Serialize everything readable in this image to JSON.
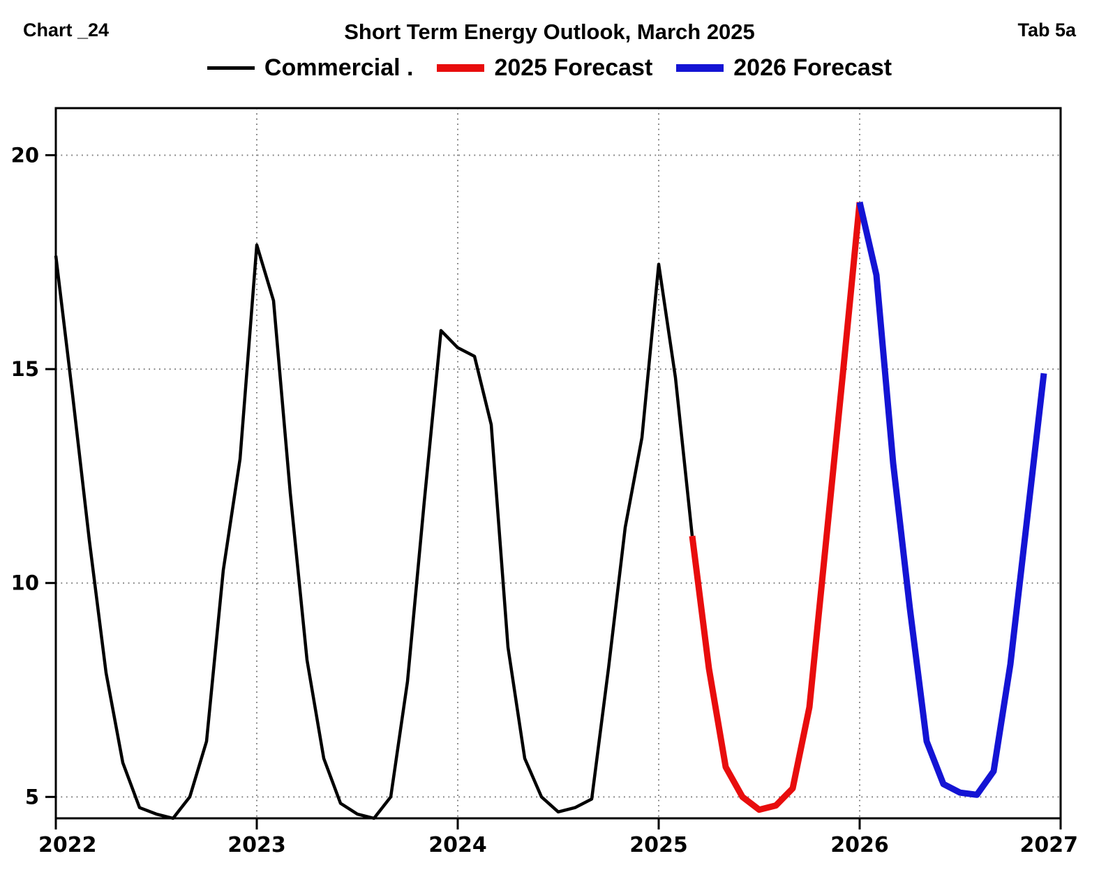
{
  "header": {
    "chart_ref": "Chart _24",
    "title": "Short Term Energy Outlook, March 2025",
    "tab_ref": "Tab 5a"
  },
  "legend": [
    {
      "label": "Commercial .",
      "color": "#000000",
      "thickness": 5
    },
    {
      "label": "2025 Forecast",
      "color": "#e80d0d",
      "thickness": 11
    },
    {
      "label": "2026 Forecast",
      "color": "#1414d4",
      "thickness": 11
    }
  ],
  "chart_data": {
    "type": "line",
    "title": "Short Term Energy Outlook, March 2025",
    "xlabel": "",
    "ylabel": "",
    "x_unit": "monthly, Jan 2022 - Dec 2026",
    "xlim_years": [
      2022,
      2027
    ],
    "ylim": [
      4.5,
      21.1
    ],
    "x_ticks": [
      "2022",
      "2023",
      "2024",
      "2025",
      "2026",
      "2027"
    ],
    "y_ticks": [
      5,
      10,
      15,
      20
    ],
    "grid": "dotted",
    "legend_position": "top",
    "series": [
      {
        "name": "Commercial",
        "color": "#000000",
        "width": 4.5,
        "start_month_index": 0,
        "values": [
          17.65,
          14.4,
          11.0,
          7.9,
          5.8,
          4.75,
          4.6,
          4.5,
          5.0,
          6.3,
          10.3,
          12.9,
          17.9,
          16.6,
          12.1,
          8.2,
          5.9,
          4.85,
          4.6,
          4.5,
          5.0,
          7.7,
          11.9,
          15.9,
          15.5,
          15.3,
          13.7,
          8.5,
          5.9,
          5.0,
          4.65,
          4.75,
          4.95,
          8.0,
          11.3,
          13.4,
          17.45,
          14.8,
          11.1
        ]
      },
      {
        "name": "2025 Forecast",
        "color": "#e80d0d",
        "width": 9,
        "start_month_index": 38,
        "values": [
          11.1,
          8.0,
          5.7,
          5.0,
          4.7,
          4.8,
          5.2,
          7.1,
          11.0,
          14.9,
          18.9
        ]
      },
      {
        "name": "2026 Forecast",
        "color": "#1414d4",
        "width": 9,
        "start_month_index": 48,
        "values": [
          18.9,
          17.2,
          12.8,
          9.4,
          6.3,
          5.3,
          5.1,
          5.05,
          5.6,
          8.1,
          11.5,
          14.9
        ]
      }
    ]
  }
}
